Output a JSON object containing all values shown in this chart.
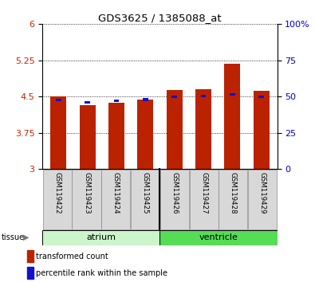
{
  "title": "GDS3625 / 1385088_at",
  "samples": [
    "GSM119422",
    "GSM119423",
    "GSM119424",
    "GSM119425",
    "GSM119426",
    "GSM119427",
    "GSM119428",
    "GSM119429"
  ],
  "red_values": [
    4.5,
    4.32,
    4.38,
    4.44,
    4.63,
    4.65,
    5.18,
    4.62
  ],
  "blue_values": [
    4.43,
    4.38,
    4.41,
    4.44,
    4.5,
    4.51,
    4.55,
    4.5
  ],
  "ylim_left": [
    3.0,
    6.0
  ],
  "yticks_left": [
    3.0,
    3.75,
    4.5,
    5.25,
    6.0
  ],
  "yticklabels_left": [
    "3",
    "3.75",
    "4.5",
    "5.25",
    "6"
  ],
  "yticks_right": [
    0,
    25,
    50,
    75,
    100
  ],
  "yticklabels_right": [
    "0",
    "25",
    "50",
    "75",
    "100%"
  ],
  "bar_bottom": 3.0,
  "n_atrium": 4,
  "n_ventricle": 4,
  "atrium_color": "#ccf5cc",
  "ventricle_color": "#55dd55",
  "tissue_label_atrium": "atrium",
  "tissue_label_ventricle": "ventricle",
  "bar_color_red": "#bb2200",
  "bar_color_blue": "#1111cc",
  "legend_red": "transformed count",
  "legend_blue": "percentile rank within the sample",
  "label_color_left": "#cc2200",
  "label_color_right": "#0000cc",
  "bar_width": 0.55,
  "blue_bar_width": 0.18,
  "blue_sq_height": 0.055,
  "xlim": [
    -0.55,
    7.55
  ]
}
